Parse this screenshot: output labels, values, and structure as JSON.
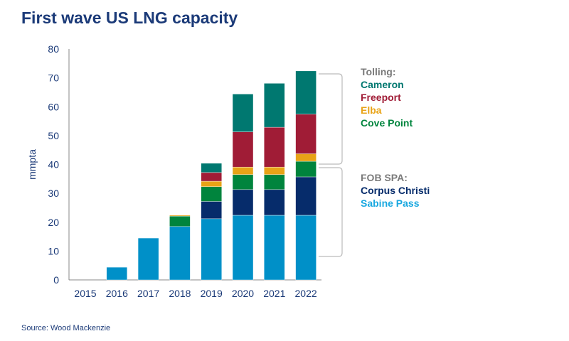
{
  "title": "First wave US LNG capacity",
  "source": "Source: Wood Mackenzie",
  "chart_data": {
    "type": "bar",
    "stacked": true,
    "title": "First wave US LNG capacity",
    "ylabel": "mmpta",
    "xlabel": "",
    "ylim": [
      0,
      80
    ],
    "yticks": [
      0,
      10,
      20,
      30,
      40,
      50,
      60,
      70,
      80
    ],
    "grid": false,
    "legend_position": "right",
    "categories": [
      "2015",
      "2016",
      "2017",
      "2018",
      "2019",
      "2020",
      "2021",
      "2022"
    ],
    "series": [
      {
        "name": "Sabine Pass",
        "group": "FOB SPA:",
        "color": "#0090C8",
        "values": [
          0,
          4.4,
          14.5,
          18.5,
          21.2,
          22.4,
          22.4,
          22.4
        ]
      },
      {
        "name": "Corpus Christi",
        "group": "FOB SPA:",
        "color": "#062C6B",
        "values": [
          0,
          0,
          0,
          0,
          6.0,
          8.9,
          8.9,
          13.3
        ]
      },
      {
        "name": "Cove Point",
        "group": "Tolling:",
        "color": "#00843D",
        "values": [
          0,
          0,
          0,
          3.6,
          5.1,
          5.2,
          5.2,
          5.4
        ]
      },
      {
        "name": "Elba",
        "group": "Tolling:",
        "color": "#E8A317",
        "values": [
          0,
          0,
          0,
          0.3,
          1.9,
          2.6,
          2.6,
          2.6
        ]
      },
      {
        "name": "Freeport",
        "group": "Tolling:",
        "color": "#A01C36",
        "values": [
          0,
          0,
          0,
          0,
          3.0,
          12.2,
          13.8,
          13.7
        ]
      },
      {
        "name": "Cameron",
        "group": "Tolling:",
        "color": "#007870",
        "values": [
          0,
          0,
          0,
          0,
          3.2,
          13.1,
          15.2,
          15.0
        ]
      }
    ],
    "legend": {
      "tolling_header": "Tolling:",
      "tolling": [
        "Cameron",
        "Freeport",
        "Elba",
        "Cove Point"
      ],
      "fob_header": "FOB SPA:",
      "fob": [
        "Corpus Christi",
        "Sabine Pass"
      ],
      "header_color": "#7a7a7a"
    }
  }
}
